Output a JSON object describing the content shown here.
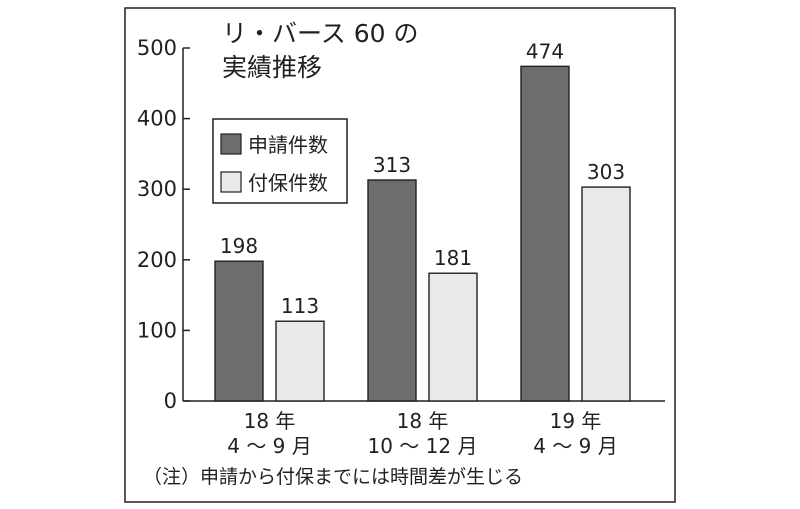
{
  "chart_data": {
    "type": "bar",
    "title": [
      "リ・バース 60 の",
      "実績推移"
    ],
    "categories": [
      [
        "18 年",
        "4 ～ 9 月"
      ],
      [
        "18 年",
        "10 ～ 12 月"
      ],
      [
        "19 年",
        "4 ～ 9 月"
      ]
    ],
    "series": [
      {
        "name": "申請件数",
        "values": [
          198,
          313,
          474
        ],
        "color": "#6d6d6f"
      },
      {
        "name": "付保件数",
        "values": [
          113,
          181,
          303
        ],
        "color": "#e8e9e9"
      }
    ],
    "ylim": [
      0,
      500
    ],
    "yticks": [
      "0",
      "100",
      "200",
      "300",
      "400",
      "500"
    ],
    "legend_position": "top-left",
    "grid": false,
    "note": "（注）申請から付保までには時間差が生じる"
  }
}
